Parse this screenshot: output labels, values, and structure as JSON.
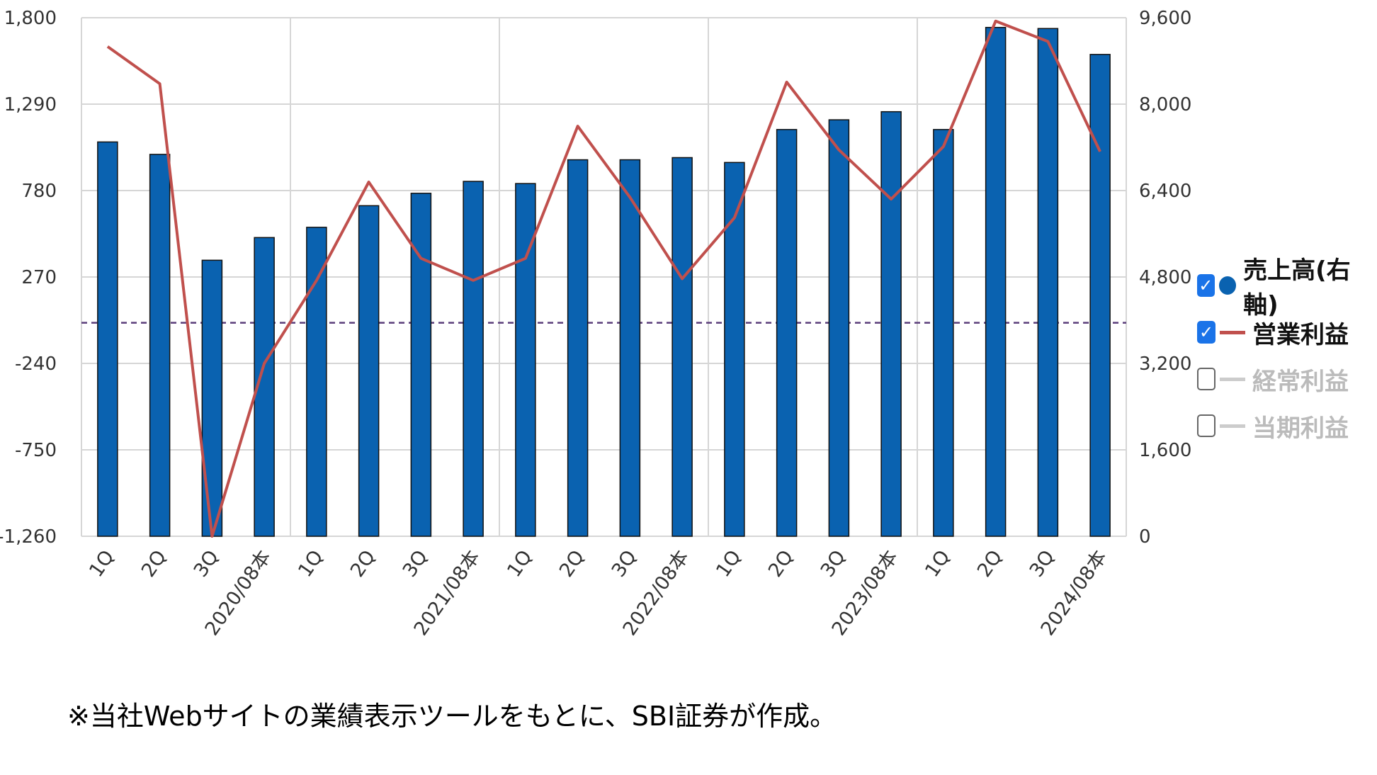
{
  "chart_data": {
    "type": "bar+line",
    "categories": [
      "1Q",
      "2Q",
      "3Q",
      "2020/08本",
      "1Q",
      "2Q",
      "3Q",
      "2021/08本",
      "1Q",
      "2Q",
      "3Q",
      "2022/08本",
      "1Q",
      "2Q",
      "3Q",
      "2023/08本",
      "1Q",
      "2Q",
      "3Q",
      "2024/08本"
    ],
    "left_axis": {
      "ticks": [
        "1,800",
        "1,290",
        "780",
        "270",
        "-240",
        "-750",
        "-1,260"
      ],
      "ylim": [
        -1260,
        1800
      ]
    },
    "right_axis": {
      "ticks": [
        "9,600",
        "8,000",
        "6,400",
        "4,800",
        "3,200",
        "1,600",
        "0"
      ],
      "ylim": [
        0,
        9600
      ]
    },
    "zero_line_value": 0,
    "series": [
      {
        "name": "売上高(右軸)",
        "type": "bar",
        "axis": "right",
        "color": "#0a62b0",
        "values": [
          7300,
          7070,
          5110,
          5530,
          5720,
          6120,
          6350,
          6570,
          6530,
          6970,
          6970,
          7010,
          6920,
          7530,
          7710,
          7860,
          7530,
          9420,
          9400,
          8920
        ]
      },
      {
        "name": "営業利益",
        "type": "line",
        "axis": "left",
        "color": "#c0504d",
        "values": [
          1630,
          1410,
          -1260,
          -240,
          250,
          830,
          380,
          250,
          380,
          1160,
          740,
          260,
          620,
          1420,
          1020,
          730,
          1040,
          1780,
          1660,
          1010
        ]
      }
    ],
    "hidden_series": [
      {
        "name": "経常利益",
        "color": "#cccccc"
      },
      {
        "name": "当期利益",
        "color": "#cccccc"
      }
    ]
  },
  "legend": {
    "items": [
      {
        "label": "売上高(右軸)",
        "checked": true,
        "marker": "dot",
        "color": "#0a62b0",
        "text_color": "#111111"
      },
      {
        "label": "営業利益",
        "checked": true,
        "marker": "line",
        "color": "#c0504d",
        "text_color": "#111111"
      },
      {
        "label": "経常利益",
        "checked": false,
        "marker": "line",
        "color": "#cccccc",
        "text_color": "#bbbbbb"
      },
      {
        "label": "当期利益",
        "checked": false,
        "marker": "line",
        "color": "#cccccc",
        "text_color": "#bbbbbb"
      }
    ]
  },
  "footnote": "※当社Webサイトの業績表示ツールをもとに、SBI証券が作成。"
}
